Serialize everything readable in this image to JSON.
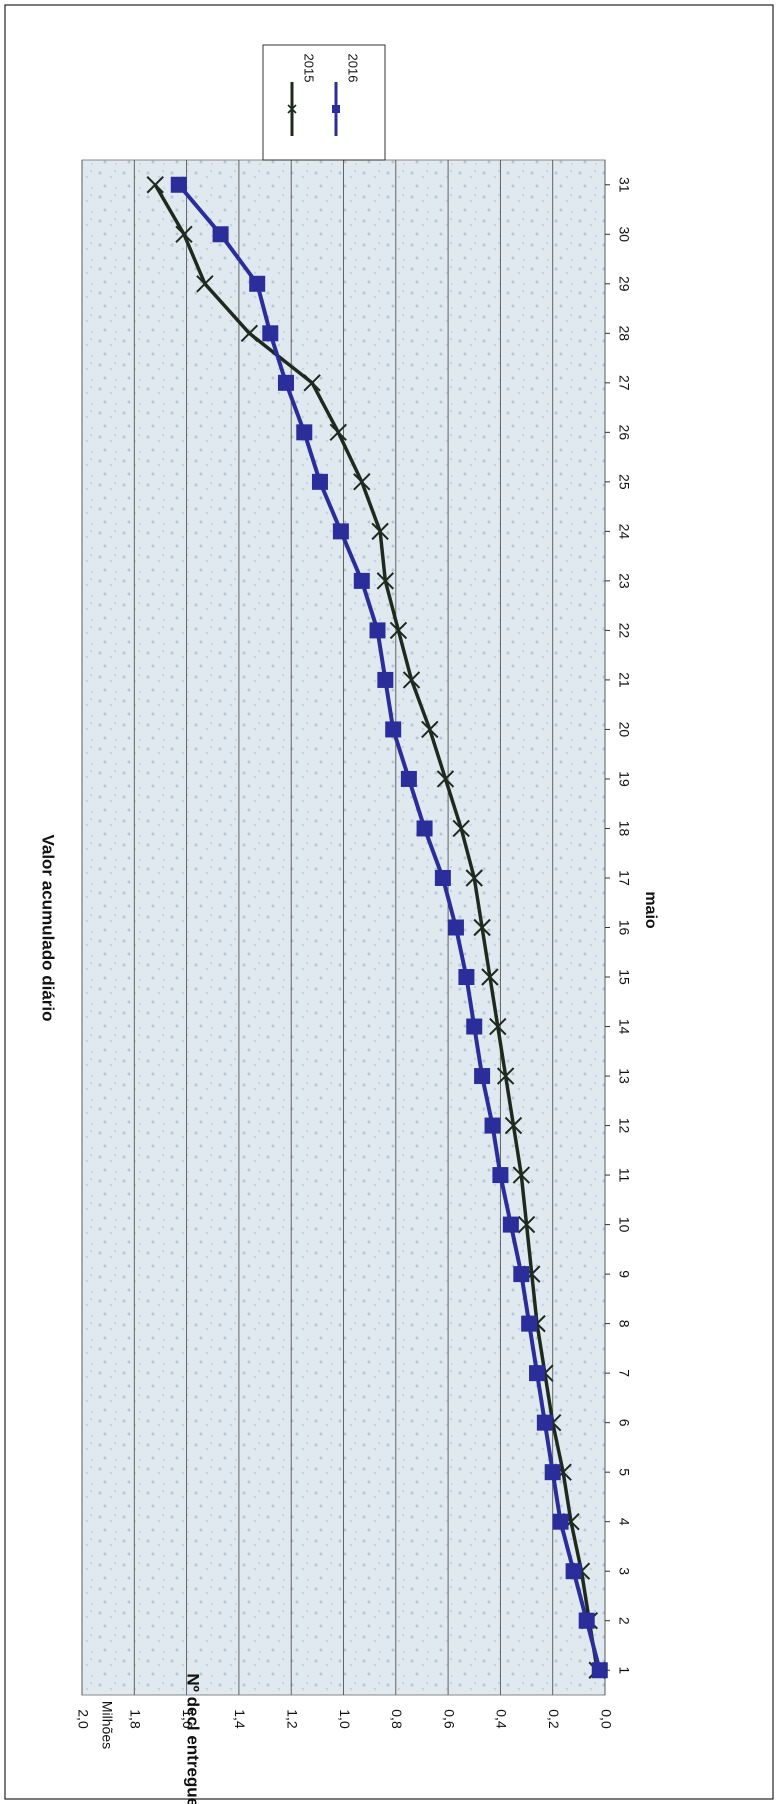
{
  "chart_data": {
    "type": "line",
    "title": "Valor acumulado diário",
    "xlabel": "maio",
    "ylabel": "Nº decl entregues",
    "yunit": "Milhões",
    "x": [
      1,
      2,
      3,
      4,
      5,
      6,
      7,
      8,
      9,
      10,
      11,
      12,
      13,
      14,
      15,
      16,
      17,
      18,
      19,
      20,
      21,
      22,
      23,
      24,
      25,
      26,
      27,
      28,
      29,
      30,
      31
    ],
    "ylim": [
      0,
      2.0
    ],
    "yticks": [
      "0,0",
      "0,2",
      "0,4",
      "0,6",
      "0,8",
      "1,0",
      "1,2",
      "1,4",
      "1,6",
      "1,8",
      "2,0"
    ],
    "xticks": [
      "1",
      "2",
      "3",
      "4",
      "5",
      "6",
      "7",
      "8",
      "9",
      "10",
      "11",
      "12",
      "13",
      "14",
      "15",
      "16",
      "17",
      "18",
      "19",
      "20",
      "21",
      "22",
      "23",
      "24",
      "25",
      "26",
      "27",
      "28",
      "29",
      "30",
      "31"
    ],
    "grid": true,
    "legend_position": "top-right",
    "series": [
      {
        "name": "2015",
        "color": "#1f2a1f",
        "marker": "x",
        "values": [
          0.03,
          0.06,
          0.09,
          0.13,
          0.16,
          0.2,
          0.23,
          0.26,
          0.28,
          0.3,
          0.32,
          0.35,
          0.38,
          0.41,
          0.44,
          0.47,
          0.5,
          0.55,
          0.61,
          0.67,
          0.74,
          0.79,
          0.84,
          0.86,
          0.93,
          1.02,
          1.12,
          1.36,
          1.53,
          1.61,
          1.72
        ]
      },
      {
        "name": "2016",
        "color": "#2b2d9a",
        "marker": "square",
        "values": [
          0.02,
          0.07,
          0.12,
          0.17,
          0.2,
          0.23,
          0.26,
          0.29,
          0.32,
          0.36,
          0.4,
          0.43,
          0.47,
          0.5,
          0.53,
          0.57,
          0.62,
          0.69,
          0.75,
          0.81,
          0.84,
          0.87,
          0.93,
          1.01,
          1.09,
          1.15,
          1.22,
          1.28,
          1.33,
          1.47,
          1.63
        ]
      }
    ]
  }
}
